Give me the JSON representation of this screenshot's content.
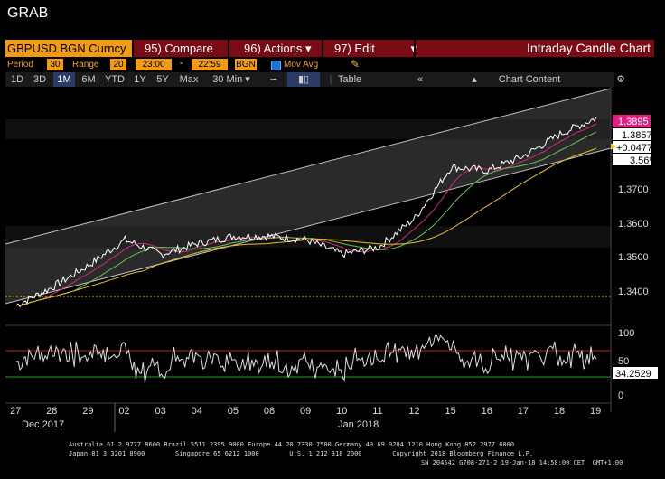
{
  "grab_label": "GRAB",
  "ticker": "GBPUSD BGN Curncy",
  "menu": {
    "compare": "95) Compare",
    "actions": "96) Actions",
    "edit": "97) Edit",
    "chart_type": "Intraday Candle Chart"
  },
  "period_row": {
    "period_label": "Period",
    "period_value": "30",
    "range_label": "Range",
    "range_value": "20",
    "start_time": "23:00",
    "dash": "-",
    "end_time": "22:59",
    "source": "BGN",
    "mov_avg_label": "Mov Avg"
  },
  "toolbar": {
    "buttons": [
      "1D",
      "3D",
      "1M",
      "6M",
      "YTD",
      "1Y",
      "5Y",
      "Max"
    ],
    "active": "1M",
    "interval": "30 Min",
    "table": "Table",
    "chart_content": "Chart Content"
  },
  "price_axis": {
    "ticks": [
      "1.3700",
      "1.3600",
      "1.3500",
      "1.3400"
    ],
    "last_price": "1.3895",
    "ma_value": "1.3857",
    "change": "+0.0477",
    "change_pct": "3.56%"
  },
  "rsi_axis": {
    "ticks": [
      "100",
      "50",
      "0"
    ],
    "value": "34.2529"
  },
  "x_axis": {
    "days": [
      "27",
      "28",
      "29",
      "02",
      "03",
      "04",
      "05",
      "08",
      "09",
      "10",
      "11",
      "12",
      "15",
      "16",
      "17",
      "18",
      "19"
    ],
    "month_left": "Dec 2017",
    "month_right": "Jan 2018"
  },
  "colors": {
    "price_line": "#ffffff",
    "ma_fast": "#d4287a",
    "ma_mid": "#6cbf5a",
    "ma_slow": "#e6c22c",
    "channel": "#bfbfbf",
    "rsi_upper": "#c02020",
    "rsi_lower": "#20a020",
    "accent_orange": "#f29a13",
    "title_bar": "#7a0a13"
  },
  "chart_data": {
    "type": "line",
    "series": [
      {
        "name": "GBPUSD",
        "x": [
          "27",
          "28",
          "29",
          "02",
          "03",
          "04",
          "05",
          "08",
          "09",
          "10",
          "11",
          "12",
          "15",
          "16",
          "17",
          "18",
          "19"
        ],
        "values": [
          1.338,
          1.343,
          1.349,
          1.356,
          1.352,
          1.355,
          1.357,
          1.357,
          1.356,
          1.352,
          1.354,
          1.362,
          1.376,
          1.375,
          1.379,
          1.385,
          1.3895
        ]
      }
    ],
    "ylim": [
      1.334,
      1.398
    ],
    "grid": false
  },
  "footer": {
    "line1": "Australia 61 2 9777 8600 Brazil 5511 2395 9000 Europe 44 20 7330 7500 Germany 49 69 9204 1210 Hong Kong 852 2977 6000",
    "line2": "Japan 81 3 3201 8900        Singapore 65 6212 1000        U.S. 1 212 318 2000        Copyright 2018 Bloomberg Finance L.P.",
    "line3": "SN 204542 G708-271-2 19-Jan-18 14:58:00 CET  GMT+1:00"
  }
}
